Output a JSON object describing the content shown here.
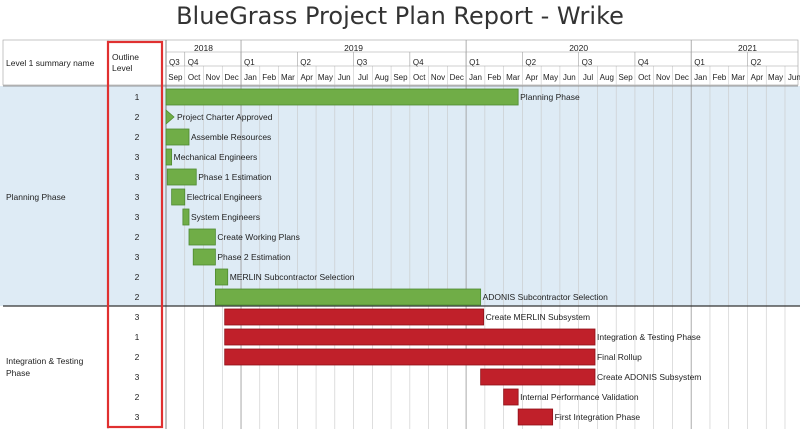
{
  "header": {
    "title": "BlueGrass Project Plan Report - Wrike"
  },
  "columns": {
    "summary": "Level 1 summary name",
    "outline": [
      "Outline",
      "Level"
    ]
  },
  "colors": {
    "planning_bar": "#70ad47",
    "planning_border": "#4e8a30",
    "integration_bar": "#c0202a",
    "integration_border": "#8f1018",
    "planning_row_bg": "#deebf5",
    "integration_row_bg": "#ffffff",
    "outline_highlight": "#e03030",
    "grid": "#c8c8c8"
  },
  "chart_data": {
    "type": "gantt",
    "title": "BlueGrass Project Plan Report - Wrike",
    "timescale": {
      "years": [
        {
          "label": "2018",
          "start": "2018-09",
          "months": 4
        },
        {
          "label": "2019",
          "start": "2019-01",
          "months": 12
        },
        {
          "label": "2020",
          "start": "2020-01",
          "months": 12
        },
        {
          "label": "2021",
          "start": "2021-01",
          "months": 6
        }
      ],
      "quarters": [
        "Q3",
        "Q4",
        "Q1",
        "Q2",
        "Q3",
        "Q4",
        "Q1",
        "Q2",
        "Q3",
        "Q4",
        "Q1",
        "Q2"
      ],
      "quarter_months": [
        1,
        3,
        3,
        3,
        3,
        3,
        3,
        3,
        3,
        3,
        3,
        3
      ],
      "months": [
        "Sep",
        "Oct",
        "Nov",
        "Dec",
        "Jan",
        "Feb",
        "Mar",
        "Apr",
        "May",
        "Jun",
        "Jul",
        "Aug",
        "Sep",
        "Oct",
        "Nov",
        "Dec",
        "Jan",
        "Feb",
        "Mar",
        "Apr",
        "May",
        "Jun",
        "Jul",
        "Aug",
        "Sep",
        "Oct",
        "Nov",
        "Dec",
        "Jan",
        "Feb",
        "Mar",
        "Apr",
        "May",
        "Jun"
      ]
    },
    "groups": [
      {
        "name": "Planning Phase",
        "color_key": "planning",
        "tasks": [
          {
            "label": "Planning Phase",
            "level": "1",
            "start": "2018-09-01",
            "end": "2020-03-25"
          },
          {
            "label": "Project Charter Approved",
            "level": "2",
            "start": "2018-09-01",
            "end": "2018-09-01",
            "milestone": true
          },
          {
            "label": "Assemble Resources",
            "level": "2",
            "start": "2018-09-01",
            "end": "2018-10-08"
          },
          {
            "label": "Mechanical Engineers",
            "level": "3",
            "start": "2018-09-01",
            "end": "2018-09-10"
          },
          {
            "label": "Phase 1 Estimation",
            "level": "3",
            "start": "2018-09-03",
            "end": "2018-10-20"
          },
          {
            "label": "Electrical Engineers",
            "level": "3",
            "start": "2018-09-10",
            "end": "2018-10-01"
          },
          {
            "label": "System Engineers",
            "level": "3",
            "start": "2018-09-28",
            "end": "2018-10-08"
          },
          {
            "label": "Create Working Plans",
            "level": "2",
            "start": "2018-10-08",
            "end": "2018-11-20"
          },
          {
            "label": "Phase 2 Estimation",
            "level": "3",
            "start": "2018-10-15",
            "end": "2018-11-20"
          },
          {
            "label": "MERLIN Subcontractor Selection",
            "level": "2",
            "start": "2018-11-20",
            "end": "2018-12-10"
          },
          {
            "label": "ADONIS Subcontractor Selection",
            "level": "2",
            "start": "2018-11-20",
            "end": "2020-01-25"
          }
        ]
      },
      {
        "name": "Integration & Testing Phase",
        "color_key": "integration",
        "tasks": [
          {
            "label": "Create MERLIN Subsystem",
            "level": "3",
            "start": "2018-12-05",
            "end": "2020-01-30"
          },
          {
            "label": "Integration & Testing Phase",
            "level": "1",
            "start": "2018-12-05",
            "end": "2020-07-28"
          },
          {
            "label": "Final Rollup",
            "level": "2",
            "start": "2018-12-05",
            "end": "2020-07-28"
          },
          {
            "label": "Create ADONIS Subsystem",
            "level": "3",
            "start": "2020-01-25",
            "end": "2020-07-28"
          },
          {
            "label": "Internal Performance Validation",
            "level": "2",
            "start": "2020-03-01",
            "end": "2020-03-25"
          },
          {
            "label": "First Integration Phase",
            "level": "3",
            "start": "2020-03-25",
            "end": "2020-05-20"
          }
        ]
      }
    ]
  }
}
